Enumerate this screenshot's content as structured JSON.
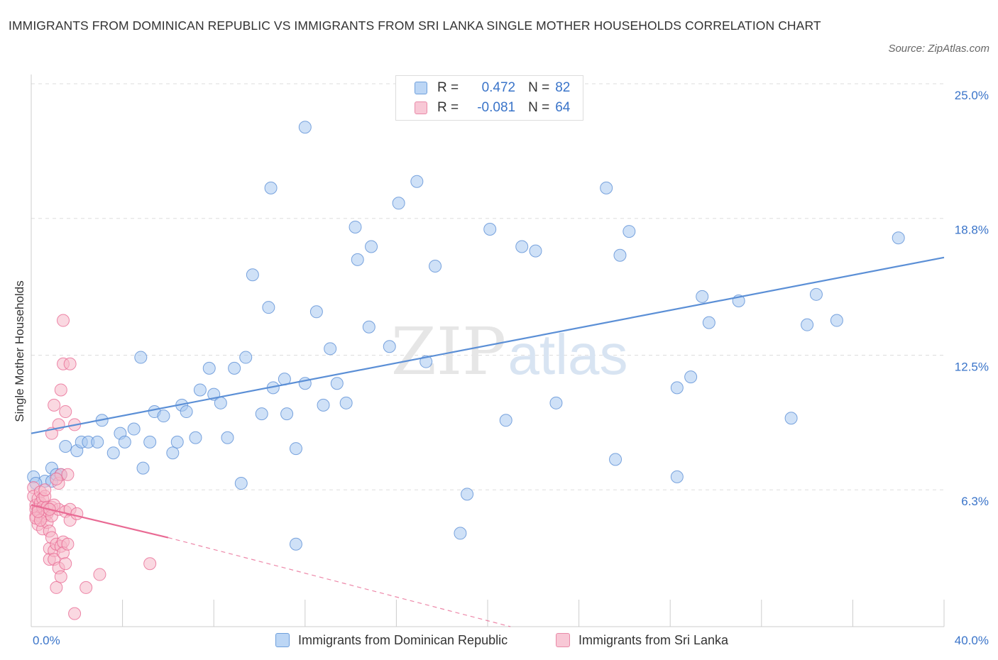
{
  "title": "IMMIGRANTS FROM DOMINICAN REPUBLIC VS IMMIGRANTS FROM SRI LANKA SINGLE MOTHER HOUSEHOLDS CORRELATION CHART",
  "source": "Source: ZipAtlas.com",
  "watermark": {
    "zip": "ZIP",
    "atlas": "atlas"
  },
  "stats_legend": {
    "r_label": "R =",
    "n_label": "N =",
    "rows": [
      {
        "r": "0.472",
        "n": "82",
        "color": "#a8c8f0"
      },
      {
        "r": "-0.081",
        "n": "64",
        "color": "#f5b8c8"
      }
    ]
  },
  "chart_data": {
    "type": "scatter",
    "title": "IMMIGRANTS FROM DOMINICAN REPUBLIC VS IMMIGRANTS FROM SRI LANKA SINGLE MOTHER HOUSEHOLDS CORRELATION CHART",
    "xlabel": "",
    "ylabel": "Single Mother Households",
    "xlim": [
      0,
      40
    ],
    "ylim": [
      0,
      25.0
    ],
    "x_tick_labels": [
      "0.0%",
      "40.0%"
    ],
    "y_ticks": [
      6.3,
      12.5,
      18.8,
      25.0
    ],
    "y_tick_labels": [
      "6.3%",
      "12.5%",
      "18.8%",
      "25.0%"
    ],
    "grid": true,
    "legend_position": "bottom",
    "series": [
      {
        "name": "Immigrants from Dominican Republic",
        "color": "#5b8fd6",
        "fill": "#a8c8f0",
        "trend": {
          "x": [
            0,
            40
          ],
          "y": [
            8.9,
            17.0
          ]
        },
        "points": [
          [
            0.1,
            6.9
          ],
          [
            0.6,
            6.7
          ],
          [
            0.9,
            6.7
          ],
          [
            0.9,
            7.3
          ],
          [
            1.1,
            7.0
          ],
          [
            1.5,
            8.3
          ],
          [
            2.0,
            8.1
          ],
          [
            2.2,
            8.5
          ],
          [
            2.5,
            8.5
          ],
          [
            2.9,
            8.5
          ],
          [
            3.1,
            9.5
          ],
          [
            3.6,
            8.0
          ],
          [
            3.9,
            8.9
          ],
          [
            4.1,
            8.5
          ],
          [
            4.5,
            9.1
          ],
          [
            4.8,
            12.4
          ],
          [
            4.9,
            7.3
          ],
          [
            5.2,
            8.5
          ],
          [
            5.4,
            9.9
          ],
          [
            5.8,
            9.7
          ],
          [
            6.2,
            8.0
          ],
          [
            6.4,
            8.5
          ],
          [
            6.6,
            10.2
          ],
          [
            6.8,
            9.9
          ],
          [
            7.2,
            8.7
          ],
          [
            7.4,
            10.9
          ],
          [
            7.8,
            11.9
          ],
          [
            8.0,
            10.7
          ],
          [
            8.3,
            10.3
          ],
          [
            8.6,
            8.7
          ],
          [
            8.9,
            11.9
          ],
          [
            9.2,
            6.6
          ],
          [
            9.4,
            12.4
          ],
          [
            9.7,
            16.2
          ],
          [
            10.1,
            9.8
          ],
          [
            10.4,
            14.7
          ],
          [
            10.6,
            11.0
          ],
          [
            10.5,
            20.2
          ],
          [
            11.1,
            11.4
          ],
          [
            11.2,
            9.8
          ],
          [
            11.6,
            8.2
          ],
          [
            11.6,
            3.8
          ],
          [
            12.0,
            11.2
          ],
          [
            12.5,
            14.5
          ],
          [
            12.8,
            10.2
          ],
          [
            12.0,
            23.0
          ],
          [
            13.1,
            12.8
          ],
          [
            13.4,
            11.2
          ],
          [
            13.8,
            10.3
          ],
          [
            14.2,
            18.4
          ],
          [
            14.3,
            16.9
          ],
          [
            14.8,
            13.8
          ],
          [
            14.9,
            17.5
          ],
          [
            15.7,
            12.9
          ],
          [
            16.1,
            19.5
          ],
          [
            16.9,
            20.5
          ],
          [
            17.3,
            12.2
          ],
          [
            17.7,
            16.6
          ],
          [
            18.8,
            4.3
          ],
          [
            19.1,
            6.1
          ],
          [
            20.1,
            18.3
          ],
          [
            20.8,
            9.5
          ],
          [
            21.5,
            17.5
          ],
          [
            22.1,
            17.3
          ],
          [
            23.0,
            10.3
          ],
          [
            25.2,
            20.2
          ],
          [
            25.6,
            7.7
          ],
          [
            25.8,
            17.1
          ],
          [
            26.2,
            18.2
          ],
          [
            28.3,
            11.0
          ],
          [
            28.3,
            6.9
          ],
          [
            28.9,
            11.5
          ],
          [
            29.4,
            15.2
          ],
          [
            29.7,
            14.0
          ],
          [
            31.0,
            15.0
          ],
          [
            33.3,
            9.6
          ],
          [
            34.0,
            13.9
          ],
          [
            34.4,
            15.3
          ],
          [
            35.3,
            14.1
          ],
          [
            38.0,
            17.9
          ],
          [
            0.2,
            6.6
          ],
          [
            1.3,
            7.0
          ]
        ]
      },
      {
        "name": "Immigrants from Sri Lanka",
        "color": "#e96a94",
        "fill": "#f5b8c8",
        "trend": {
          "x": [
            0,
            6.0
          ],
          "y": [
            5.6,
            4.1
          ]
        },
        "trend_extension": {
          "x": [
            6.0,
            21.0
          ],
          "y": [
            4.1,
            0.0
          ]
        },
        "points": [
          [
            0.1,
            6.4
          ],
          [
            0.1,
            6.0
          ],
          [
            0.2,
            5.6
          ],
          [
            0.2,
            5.4
          ],
          [
            0.2,
            5.1
          ],
          [
            0.3,
            5.9
          ],
          [
            0.3,
            5.4
          ],
          [
            0.3,
            4.7
          ],
          [
            0.4,
            6.2
          ],
          [
            0.4,
            5.7
          ],
          [
            0.4,
            5.1
          ],
          [
            0.5,
            5.9
          ],
          [
            0.5,
            5.5
          ],
          [
            0.5,
            4.5
          ],
          [
            0.6,
            5.1
          ],
          [
            0.6,
            6.0
          ],
          [
            0.7,
            5.2
          ],
          [
            0.7,
            5.5
          ],
          [
            0.7,
            4.8
          ],
          [
            0.8,
            4.4
          ],
          [
            0.8,
            3.6
          ],
          [
            0.8,
            3.1
          ],
          [
            0.9,
            5.5
          ],
          [
            0.9,
            4.1
          ],
          [
            0.9,
            5.1
          ],
          [
            0.9,
            8.9
          ],
          [
            1.0,
            3.5
          ],
          [
            1.0,
            3.1
          ],
          [
            1.0,
            10.2
          ],
          [
            1.1,
            1.8
          ],
          [
            1.1,
            3.8
          ],
          [
            1.2,
            9.3
          ],
          [
            1.2,
            5.4
          ],
          [
            1.2,
            2.7
          ],
          [
            1.2,
            6.6
          ],
          [
            1.3,
            7.0
          ],
          [
            1.3,
            3.7
          ],
          [
            1.3,
            2.3
          ],
          [
            1.3,
            10.9
          ],
          [
            1.4,
            3.9
          ],
          [
            1.4,
            12.1
          ],
          [
            1.4,
            3.4
          ],
          [
            1.4,
            14.1
          ],
          [
            1.5,
            2.9
          ],
          [
            1.5,
            9.9
          ],
          [
            1.5,
            5.3
          ],
          [
            1.6,
            3.8
          ],
          [
            1.6,
            7.0
          ],
          [
            1.7,
            12.1
          ],
          [
            1.7,
            4.9
          ],
          [
            1.7,
            5.4
          ],
          [
            1.9,
            0.6
          ],
          [
            1.9,
            9.3
          ],
          [
            2.0,
            5.2
          ],
          [
            2.4,
            1.8
          ],
          [
            3.0,
            2.4
          ],
          [
            5.2,
            2.9
          ],
          [
            0.2,
            5.0
          ],
          [
            0.6,
            6.3
          ],
          [
            1.0,
            5.6
          ],
          [
            0.4,
            4.9
          ],
          [
            0.8,
            5.4
          ],
          [
            1.1,
            6.8
          ],
          [
            0.3,
            5.3
          ]
        ]
      }
    ]
  },
  "bottom_legend": [
    {
      "label": "Immigrants from Dominican Republic",
      "color": "#a8c8f0",
      "border": "#5b8fd6"
    },
    {
      "label": "Immigrants from Sri Lanka",
      "color": "#f5b8c8",
      "border": "#e96a94"
    }
  ]
}
